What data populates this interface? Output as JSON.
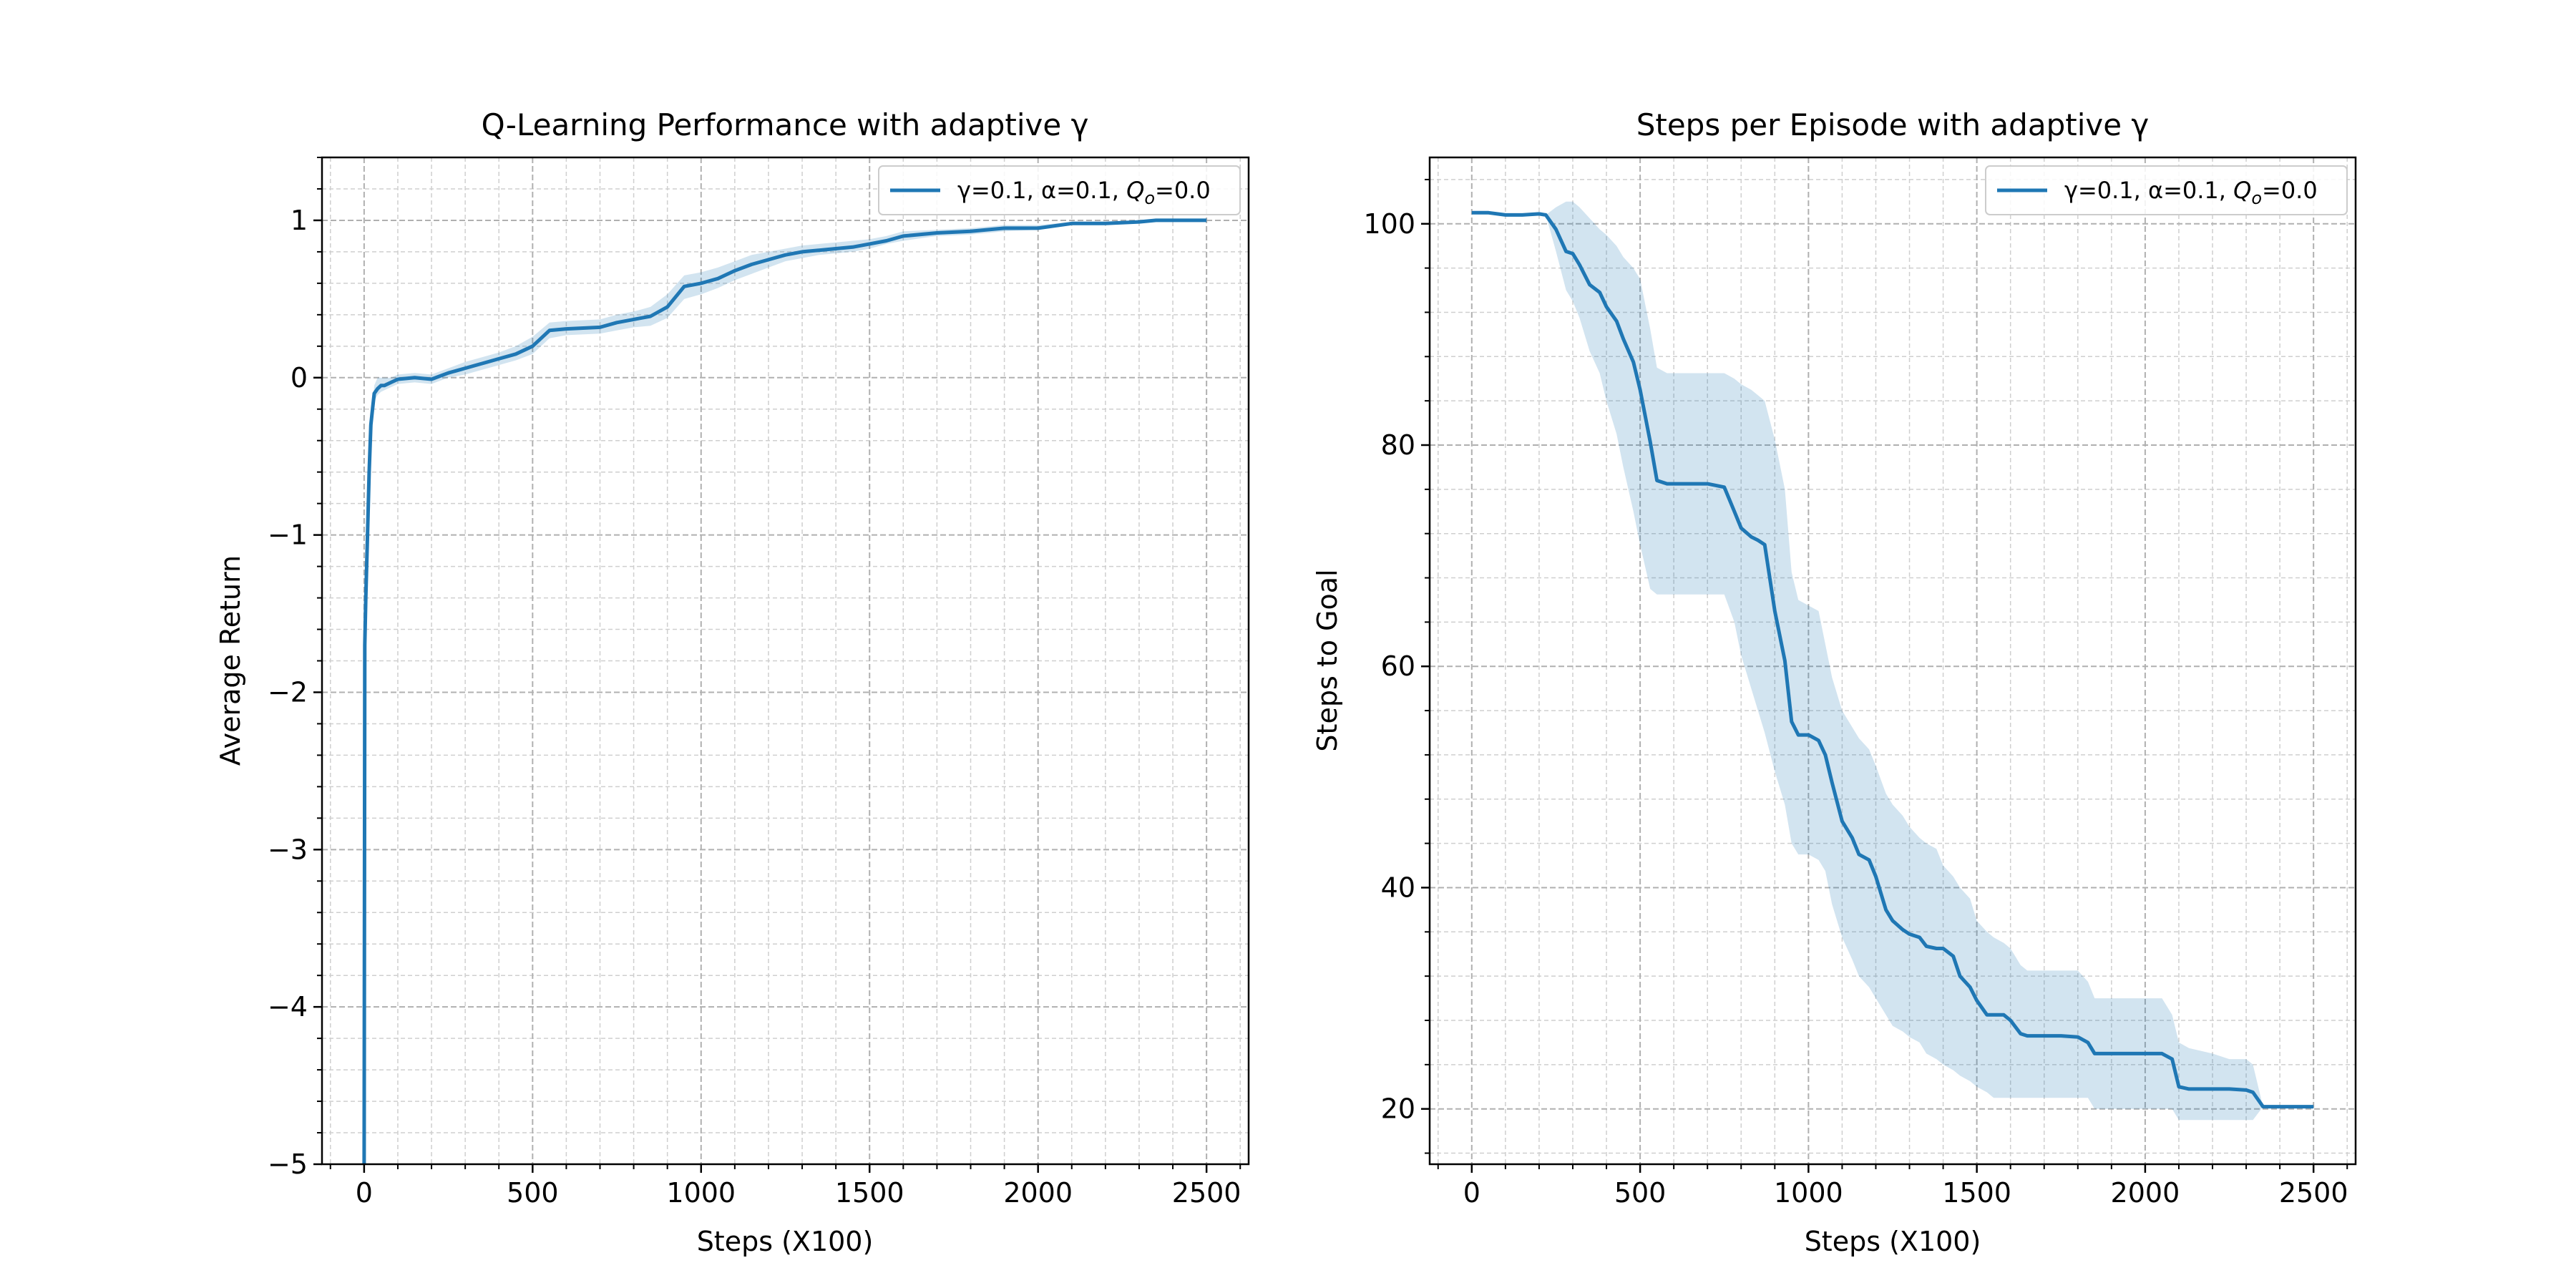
{
  "figure": {
    "background": "#ffffff"
  },
  "chart_data": [
    {
      "type": "line",
      "title": "Q-Learning Performance with adaptive γ",
      "xlabel": "Steps (X100)",
      "ylabel": "Average Return",
      "xlim": [
        -125,
        2625
      ],
      "ylim": [
        -5,
        1.4
      ],
      "xticks": [
        0,
        500,
        1000,
        1500,
        2000,
        2500
      ],
      "xtick_labels": [
        "0",
        "500",
        "1000",
        "1500",
        "2000",
        "2500"
      ],
      "yticks": [
        -5,
        -4,
        -3,
        -2,
        -1,
        0,
        1
      ],
      "ytick_labels": [
        "−5",
        "−4",
        "−3",
        "−2",
        "−1",
        "0",
        "1"
      ],
      "grid": true,
      "minor_grid": true,
      "legend": {
        "placement": "upper right",
        "entries": [
          {
            "prefix": "γ=0.1, α=0.1, ",
            "math_base": "Q",
            "math_sub": "o",
            "suffix": "=0.0"
          }
        ]
      },
      "series": [
        {
          "name": "γ=0.1, α=0.1, Q_o=0.0",
          "color": "#1f77b4",
          "x": [
            0,
            2,
            5,
            10,
            15,
            20,
            25,
            30,
            40,
            50,
            60,
            80,
            100,
            150,
            200,
            250,
            300,
            350,
            400,
            450,
            500,
            550,
            600,
            700,
            750,
            800,
            850,
            900,
            950,
            1000,
            1050,
            1100,
            1150,
            1200,
            1250,
            1300,
            1350,
            1400,
            1450,
            1500,
            1550,
            1600,
            1700,
            1800,
            1900,
            2000,
            2100,
            2200,
            2300,
            2350,
            2400,
            2500
          ],
          "mean": [
            -5.0,
            -1.7,
            -1.4,
            -1.0,
            -0.6,
            -0.3,
            -0.2,
            -0.1,
            -0.07,
            -0.05,
            -0.05,
            -0.03,
            -0.01,
            0.0,
            -0.01,
            0.03,
            0.06,
            0.09,
            0.12,
            0.15,
            0.2,
            0.3,
            0.31,
            0.32,
            0.35,
            0.37,
            0.39,
            0.45,
            0.58,
            0.6,
            0.63,
            0.68,
            0.72,
            0.75,
            0.78,
            0.8,
            0.81,
            0.82,
            0.83,
            0.85,
            0.87,
            0.9,
            0.92,
            0.93,
            0.95,
            0.95,
            0.98,
            0.98,
            0.99,
            1.0,
            1.0,
            1.0
          ],
          "lower": [
            -5.0,
            -1.7,
            -1.4,
            -1.0,
            -0.6,
            -0.3,
            -0.2,
            -0.15,
            -0.11,
            -0.09,
            -0.08,
            -0.06,
            -0.04,
            -0.03,
            -0.04,
            0.0,
            0.02,
            0.05,
            0.08,
            0.11,
            0.15,
            0.25,
            0.27,
            0.28,
            0.3,
            0.32,
            0.33,
            0.38,
            0.5,
            0.53,
            0.57,
            0.62,
            0.66,
            0.7,
            0.74,
            0.76,
            0.78,
            0.79,
            0.8,
            0.82,
            0.85,
            0.87,
            0.9,
            0.91,
            0.93,
            0.94,
            0.97,
            0.98,
            0.99,
            1.0,
            1.0,
            1.0
          ],
          "upper": [
            -5.0,
            -1.7,
            -1.4,
            -1.0,
            -0.6,
            -0.3,
            -0.2,
            -0.05,
            0.0,
            0.0,
            0.0,
            0.0,
            0.02,
            0.03,
            0.02,
            0.06,
            0.1,
            0.13,
            0.16,
            0.2,
            0.26,
            0.35,
            0.36,
            0.37,
            0.4,
            0.42,
            0.45,
            0.53,
            0.65,
            0.67,
            0.7,
            0.74,
            0.78,
            0.8,
            0.82,
            0.84,
            0.85,
            0.86,
            0.87,
            0.88,
            0.9,
            0.93,
            0.94,
            0.95,
            0.97,
            0.97,
            0.99,
            0.99,
            1.0,
            1.0,
            1.0,
            1.0
          ]
        }
      ]
    },
    {
      "type": "line",
      "title": "Steps per Episode with adaptive γ",
      "xlabel": "Steps (X100)",
      "ylabel": "Steps to Goal",
      "xlim": [
        -125,
        2625
      ],
      "ylim": [
        15,
        106
      ],
      "xticks": [
        0,
        500,
        1000,
        1500,
        2000,
        2500
      ],
      "xtick_labels": [
        "0",
        "500",
        "1000",
        "1500",
        "2000",
        "2500"
      ],
      "yticks": [
        20,
        40,
        60,
        80,
        100
      ],
      "ytick_labels": [
        "20",
        "40",
        "60",
        "80",
        "100"
      ],
      "grid": true,
      "minor_grid": true,
      "legend": {
        "placement": "upper right",
        "entries": [
          {
            "prefix": "γ=0.1, α=0.1, ",
            "math_base": "Q",
            "math_sub": "o",
            "suffix": "=0.0"
          }
        ]
      },
      "series": [
        {
          "name": "γ=0.1, α=0.1, Q_o=0.0",
          "color": "#1f77b4",
          "x": [
            0,
            50,
            100,
            150,
            200,
            220,
            250,
            280,
            300,
            320,
            350,
            380,
            400,
            430,
            450,
            480,
            500,
            530,
            550,
            580,
            600,
            650,
            700,
            750,
            780,
            800,
            830,
            850,
            870,
            900,
            930,
            950,
            970,
            1000,
            1030,
            1050,
            1070,
            1100,
            1130,
            1150,
            1180,
            1200,
            1230,
            1250,
            1280,
            1300,
            1330,
            1350,
            1380,
            1400,
            1430,
            1450,
            1480,
            1500,
            1530,
            1550,
            1580,
            1600,
            1630,
            1650,
            1700,
            1750,
            1800,
            1830,
            1850,
            1880,
            1900,
            1950,
            2000,
            2050,
            2080,
            2100,
            2130,
            2200,
            2250,
            2300,
            2320,
            2350,
            2400,
            2500
          ],
          "mean": [
            101,
            101,
            100.8,
            100.8,
            100.9,
            100.8,
            99.5,
            97.5,
            97.3,
            96.3,
            94.5,
            93.8,
            92.5,
            91.2,
            89.6,
            87.5,
            85.0,
            80.3,
            76.8,
            76.5,
            76.5,
            76.5,
            76.5,
            76.2,
            74.0,
            72.5,
            71.7,
            71.4,
            71.0,
            65.0,
            60.5,
            55.0,
            53.8,
            53.8,
            53.3,
            52.0,
            49.5,
            46.0,
            44.5,
            43.0,
            42.5,
            41.0,
            38.0,
            37.0,
            36.2,
            35.8,
            35.5,
            34.7,
            34.5,
            34.5,
            33.8,
            32.0,
            31.0,
            29.8,
            28.5,
            28.5,
            28.5,
            28.0,
            26.8,
            26.6,
            26.6,
            26.6,
            26.5,
            26.0,
            25.0,
            25.0,
            25.0,
            25.0,
            25.0,
            25.0,
            24.5,
            22.0,
            21.8,
            21.8,
            21.8,
            21.7,
            21.5,
            20.2,
            20.2,
            20.2
          ],
          "lower": [
            101,
            101,
            100.8,
            100.8,
            100.9,
            100.8,
            97.5,
            94.0,
            93.0,
            91.5,
            88.5,
            86.5,
            84.0,
            81.0,
            78.0,
            74.0,
            71.0,
            67.0,
            66.5,
            66.5,
            66.5,
            66.5,
            66.5,
            66.5,
            64.0,
            61.0,
            58.0,
            56.0,
            54.0,
            50.5,
            47.5,
            44.0,
            43.0,
            43.0,
            42.5,
            41.5,
            38.5,
            35.5,
            33.5,
            32.0,
            31.0,
            30.0,
            28.5,
            27.5,
            27.0,
            26.5,
            26.0,
            25.0,
            24.5,
            24.0,
            23.5,
            23.0,
            22.5,
            22.0,
            21.5,
            21.0,
            21.0,
            21.0,
            21.0,
            21.0,
            21.0,
            21.0,
            21.0,
            21.0,
            20.0,
            20.0,
            20.0,
            20.0,
            20.0,
            20.0,
            20.0,
            19.0,
            19.0,
            19.0,
            19.0,
            19.0,
            19.0,
            20.2,
            20.2,
            20.2
          ],
          "upper": [
            101,
            101,
            100.8,
            100.8,
            100.9,
            100.8,
            101.5,
            102.0,
            102.0,
            101.5,
            100.5,
            99.5,
            99.0,
            98.0,
            97.0,
            96.0,
            95.0,
            90.5,
            87.0,
            86.5,
            86.5,
            86.5,
            86.5,
            86.5,
            86.0,
            85.5,
            85.0,
            84.5,
            84.0,
            80.5,
            76.0,
            68.5,
            66.0,
            65.5,
            65.0,
            62.0,
            59.0,
            56.0,
            54.5,
            53.5,
            52.5,
            51.0,
            48.5,
            47.5,
            46.5,
            45.5,
            44.5,
            44.0,
            43.5,
            42.0,
            41.0,
            40.0,
            39.0,
            37.0,
            36.0,
            35.5,
            35.0,
            34.5,
            33.0,
            32.5,
            32.5,
            32.5,
            32.5,
            31.5,
            30.0,
            30.0,
            30.0,
            30.0,
            30.0,
            30.0,
            28.5,
            26.0,
            25.5,
            25.0,
            24.5,
            24.5,
            24.0,
            20.2,
            20.2,
            20.2
          ]
        }
      ]
    }
  ]
}
